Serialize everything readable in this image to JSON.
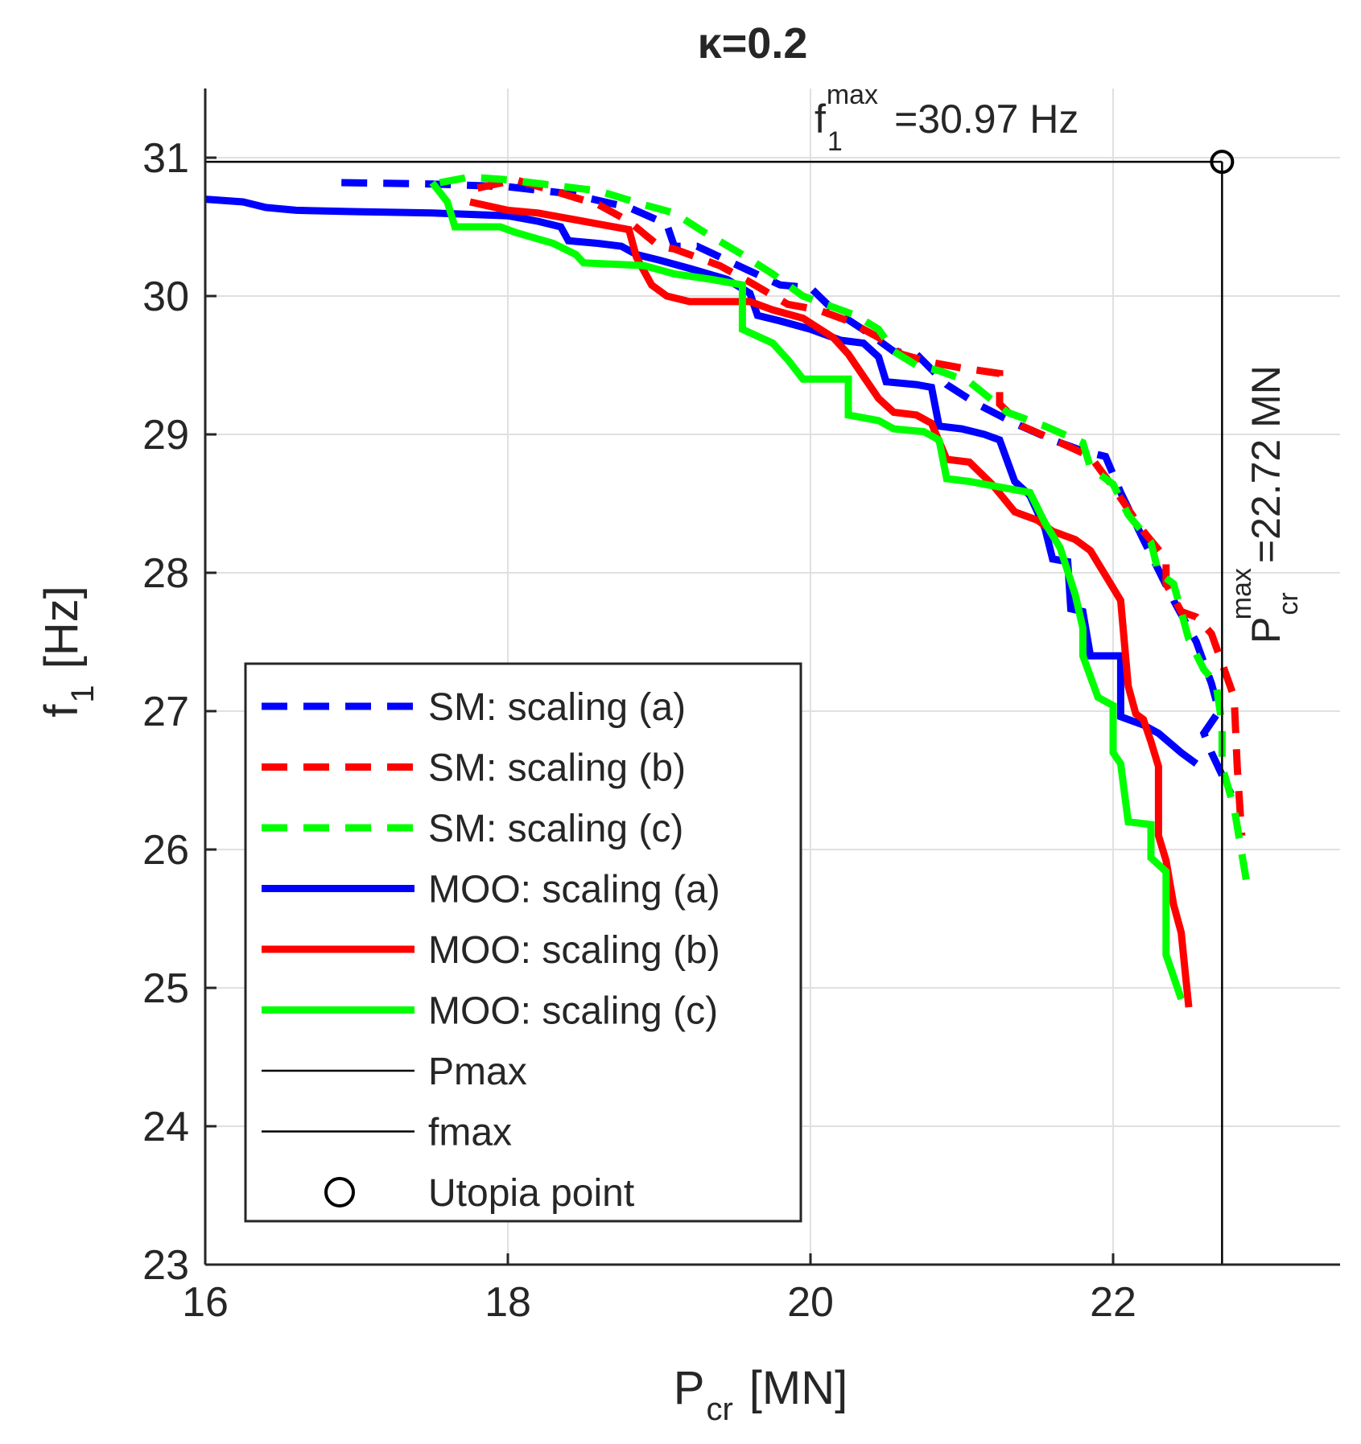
{
  "chart_data": {
    "type": "line",
    "title_symbol": "κ",
    "title_rest": "=0.2",
    "xlabel_main": "P",
    "xlabel_sub": "cr",
    "xlabel_unit": "[MN]",
    "ylabel_main": "f",
    "ylabel_sub": "1",
    "ylabel_unit": "[Hz]",
    "xlim": [
      16,
      23.5
    ],
    "ylim": [
      23,
      31.5
    ],
    "xticks": [
      16,
      18,
      20,
      22
    ],
    "yticks": [
      23,
      24,
      25,
      26,
      27,
      28,
      29,
      30,
      31
    ],
    "grid": true,
    "legend_position": "bottom-left",
    "colors": {
      "blue": "#0000ff",
      "red": "#ff0000",
      "green": "#00ff00",
      "black": "#000000"
    },
    "reference_lines": {
      "fmax_value": 30.97,
      "pmax_value": 22.72,
      "fmax_label_main": "f",
      "fmax_label_sub": "1",
      "fmax_label_sup": "max",
      "fmax_label_value": "=30.97 Hz",
      "pmax_label_main": "P",
      "pmax_label_sub": "cr",
      "pmax_label_sup": "max",
      "pmax_label_value": "=22.72 MN"
    },
    "utopia_point": {
      "x": 22.72,
      "y": 30.97
    },
    "series": [
      {
        "name": "SM: scaling (a)",
        "color": "blue",
        "style": "dashed",
        "points": [
          [
            16.9,
            30.82
          ],
          [
            17.5,
            30.81
          ],
          [
            18.0,
            30.79
          ],
          [
            18.4,
            30.74
          ],
          [
            18.8,
            30.64
          ],
          [
            19.05,
            30.52
          ],
          [
            19.1,
            30.36
          ],
          [
            19.25,
            30.36
          ],
          [
            19.6,
            30.18
          ],
          [
            19.8,
            30.08
          ],
          [
            20.0,
            30.06
          ],
          [
            20.15,
            29.9
          ],
          [
            20.4,
            29.72
          ],
          [
            20.55,
            29.6
          ],
          [
            20.7,
            29.58
          ],
          [
            20.9,
            29.36
          ],
          [
            21.1,
            29.22
          ],
          [
            21.35,
            29.08
          ],
          [
            21.6,
            28.96
          ],
          [
            21.8,
            28.88
          ],
          [
            21.95,
            28.84
          ],
          [
            22.05,
            28.58
          ],
          [
            22.2,
            28.24
          ],
          [
            22.4,
            27.8
          ],
          [
            22.55,
            27.5
          ],
          [
            22.65,
            27.2
          ],
          [
            22.7,
            27.0
          ],
          [
            22.6,
            26.84
          ],
          [
            22.65,
            26.7
          ],
          [
            22.78,
            26.4
          ]
        ]
      },
      {
        "name": "SM: scaling (b)",
        "color": "red",
        "style": "dashed",
        "points": [
          [
            17.8,
            30.78
          ],
          [
            18.05,
            30.84
          ],
          [
            18.3,
            30.76
          ],
          [
            18.6,
            30.66
          ],
          [
            18.8,
            30.54
          ],
          [
            19.0,
            30.36
          ],
          [
            19.1,
            30.34
          ],
          [
            19.4,
            30.22
          ],
          [
            19.6,
            30.1
          ],
          [
            19.85,
            29.94
          ],
          [
            20.05,
            29.9
          ],
          [
            20.25,
            29.82
          ],
          [
            20.45,
            29.7
          ],
          [
            20.6,
            29.58
          ],
          [
            20.8,
            29.52
          ],
          [
            21.0,
            29.48
          ],
          [
            21.25,
            29.44
          ],
          [
            21.25,
            29.22
          ],
          [
            21.4,
            29.06
          ],
          [
            21.65,
            28.94
          ],
          [
            21.85,
            28.84
          ],
          [
            22.0,
            28.62
          ],
          [
            22.2,
            28.3
          ],
          [
            22.35,
            28.1
          ],
          [
            22.35,
            27.92
          ],
          [
            22.45,
            27.72
          ],
          [
            22.55,
            27.68
          ],
          [
            22.65,
            27.56
          ],
          [
            22.8,
            27.1
          ],
          [
            22.82,
            26.6
          ],
          [
            22.85,
            26.1
          ]
        ]
      },
      {
        "name": "SM: scaling (c)",
        "color": "green",
        "style": "dashed",
        "points": [
          [
            17.55,
            30.82
          ],
          [
            17.75,
            30.86
          ],
          [
            18.0,
            30.84
          ],
          [
            18.3,
            30.8
          ],
          [
            18.6,
            30.76
          ],
          [
            18.9,
            30.66
          ],
          [
            19.1,
            30.6
          ],
          [
            19.3,
            30.46
          ],
          [
            19.55,
            30.3
          ],
          [
            19.75,
            30.16
          ],
          [
            19.95,
            30.0
          ],
          [
            20.15,
            29.92
          ],
          [
            20.3,
            29.86
          ],
          [
            20.45,
            29.76
          ],
          [
            20.55,
            29.6
          ],
          [
            20.7,
            29.5
          ],
          [
            20.85,
            29.46
          ],
          [
            21.05,
            29.38
          ],
          [
            21.3,
            29.16
          ],
          [
            21.55,
            29.06
          ],
          [
            21.8,
            28.94
          ],
          [
            21.85,
            28.76
          ],
          [
            22.0,
            28.64
          ],
          [
            22.1,
            28.42
          ],
          [
            22.25,
            28.22
          ],
          [
            22.3,
            28.0
          ],
          [
            22.4,
            27.92
          ],
          [
            22.5,
            27.52
          ],
          [
            22.6,
            27.3
          ],
          [
            22.68,
            27.2
          ],
          [
            22.72,
            26.9
          ],
          [
            22.72,
            26.6
          ],
          [
            22.8,
            26.3
          ],
          [
            22.88,
            25.78
          ]
        ]
      },
      {
        "name": "MOO: scaling (a)",
        "color": "blue",
        "style": "solid",
        "points": [
          [
            16.0,
            30.7
          ],
          [
            16.25,
            30.68
          ],
          [
            16.4,
            30.64
          ],
          [
            16.6,
            30.62
          ],
          [
            17.0,
            30.61
          ],
          [
            17.5,
            30.6
          ],
          [
            18.0,
            30.58
          ],
          [
            18.2,
            30.54
          ],
          [
            18.35,
            30.5
          ],
          [
            18.4,
            30.4
          ],
          [
            18.6,
            30.38
          ],
          [
            18.75,
            30.36
          ],
          [
            18.85,
            30.3
          ],
          [
            19.0,
            30.26
          ],
          [
            19.2,
            30.2
          ],
          [
            19.45,
            30.12
          ],
          [
            19.6,
            30.02
          ],
          [
            19.65,
            29.86
          ],
          [
            19.8,
            29.82
          ],
          [
            20.0,
            29.76
          ],
          [
            20.2,
            29.68
          ],
          [
            20.35,
            29.66
          ],
          [
            20.45,
            29.56
          ],
          [
            20.5,
            29.38
          ],
          [
            20.7,
            29.36
          ],
          [
            20.8,
            29.34
          ],
          [
            20.85,
            29.06
          ],
          [
            21.0,
            29.04
          ],
          [
            21.15,
            29.0
          ],
          [
            21.25,
            28.96
          ],
          [
            21.35,
            28.66
          ],
          [
            21.45,
            28.56
          ],
          [
            21.55,
            28.32
          ],
          [
            21.6,
            28.1
          ],
          [
            21.7,
            28.08
          ],
          [
            21.72,
            27.74
          ],
          [
            21.8,
            27.72
          ],
          [
            21.85,
            27.4
          ],
          [
            22.05,
            27.4
          ],
          [
            22.05,
            26.96
          ],
          [
            22.2,
            26.9
          ],
          [
            22.3,
            26.84
          ],
          [
            22.45,
            26.7
          ],
          [
            22.55,
            26.62
          ]
        ]
      },
      {
        "name": "MOO: scaling (b)",
        "color": "red",
        "style": "solid",
        "points": [
          [
            17.75,
            30.68
          ],
          [
            18.0,
            30.62
          ],
          [
            18.2,
            30.6
          ],
          [
            18.5,
            30.54
          ],
          [
            18.8,
            30.48
          ],
          [
            18.85,
            30.28
          ],
          [
            18.95,
            30.08
          ],
          [
            19.05,
            30.0
          ],
          [
            19.2,
            29.96
          ],
          [
            19.6,
            29.96
          ],
          [
            19.75,
            29.9
          ],
          [
            19.95,
            29.84
          ],
          [
            20.15,
            29.7
          ],
          [
            20.25,
            29.58
          ],
          [
            20.35,
            29.42
          ],
          [
            20.45,
            29.26
          ],
          [
            20.55,
            29.16
          ],
          [
            20.7,
            29.14
          ],
          [
            20.8,
            29.08
          ],
          [
            20.9,
            28.82
          ],
          [
            21.05,
            28.8
          ],
          [
            21.2,
            28.64
          ],
          [
            21.35,
            28.44
          ],
          [
            21.5,
            28.38
          ],
          [
            21.6,
            28.3
          ],
          [
            21.75,
            28.24
          ],
          [
            21.85,
            28.16
          ],
          [
            21.95,
            27.98
          ],
          [
            22.05,
            27.8
          ],
          [
            22.1,
            27.18
          ],
          [
            22.15,
            26.98
          ],
          [
            22.2,
            26.94
          ],
          [
            22.25,
            26.78
          ],
          [
            22.3,
            26.6
          ],
          [
            22.3,
            26.1
          ],
          [
            22.35,
            25.92
          ],
          [
            22.4,
            25.6
          ],
          [
            22.45,
            25.4
          ],
          [
            22.5,
            24.86
          ]
        ]
      },
      {
        "name": "MOO: scaling (c)",
        "color": "green",
        "style": "solid",
        "points": [
          [
            17.5,
            30.82
          ],
          [
            17.6,
            30.68
          ],
          [
            17.65,
            30.5
          ],
          [
            17.95,
            30.5
          ],
          [
            18.05,
            30.46
          ],
          [
            18.3,
            30.38
          ],
          [
            18.45,
            30.3
          ],
          [
            18.5,
            30.24
          ],
          [
            18.9,
            30.22
          ],
          [
            19.1,
            30.16
          ],
          [
            19.35,
            30.12
          ],
          [
            19.55,
            30.08
          ],
          [
            19.55,
            29.76
          ],
          [
            19.75,
            29.66
          ],
          [
            19.85,
            29.54
          ],
          [
            19.95,
            29.4
          ],
          [
            20.25,
            29.4
          ],
          [
            20.25,
            29.14
          ],
          [
            20.45,
            29.1
          ],
          [
            20.55,
            29.04
          ],
          [
            20.75,
            29.02
          ],
          [
            20.85,
            28.96
          ],
          [
            20.9,
            28.68
          ],
          [
            21.05,
            28.66
          ],
          [
            21.25,
            28.62
          ],
          [
            21.45,
            28.58
          ],
          [
            21.55,
            28.36
          ],
          [
            21.65,
            28.18
          ],
          [
            21.75,
            27.84
          ],
          [
            21.8,
            27.6
          ],
          [
            21.8,
            27.4
          ],
          [
            21.9,
            27.1
          ],
          [
            22.0,
            27.04
          ],
          [
            22.0,
            26.7
          ],
          [
            22.05,
            26.62
          ],
          [
            22.1,
            26.2
          ],
          [
            22.25,
            26.18
          ],
          [
            22.25,
            25.94
          ],
          [
            22.35,
            25.84
          ],
          [
            22.35,
            25.24
          ],
          [
            22.45,
            24.92
          ]
        ]
      }
    ],
    "legend": [
      {
        "label": "SM: scaling (a)",
        "color": "blue",
        "style": "dashed"
      },
      {
        "label": "SM: scaling (b)",
        "color": "red",
        "style": "dashed"
      },
      {
        "label": "SM: scaling (c)",
        "color": "green",
        "style": "dashed"
      },
      {
        "label": "MOO: scaling (a)",
        "color": "blue",
        "style": "solid"
      },
      {
        "label": "MOO: scaling (b)",
        "color": "red",
        "style": "solid"
      },
      {
        "label": "MOO: scaling (c)",
        "color": "green",
        "style": "solid"
      },
      {
        "label": "Pmax",
        "color": "black",
        "style": "thin"
      },
      {
        "label": "fmax",
        "color": "black",
        "style": "thin"
      },
      {
        "label": "Utopia point",
        "color": "black",
        "style": "marker"
      }
    ]
  }
}
